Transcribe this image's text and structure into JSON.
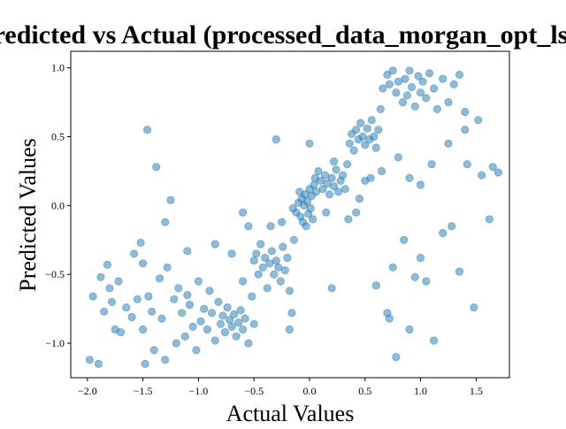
{
  "chart_data": {
    "type": "scatter",
    "title": "Predicted vs Actual (processed_data_morgan_opt_lsc)",
    "xlabel": "Actual Values",
    "ylabel": "Predicted Values",
    "xlim": [
      -2.15,
      1.8
    ],
    "ylim": [
      -1.25,
      1.12
    ],
    "xticks": [
      -2.0,
      -1.5,
      -1.0,
      -0.5,
      0.0,
      0.5,
      1.0,
      1.5
    ],
    "xtick_labels": [
      "−2.0",
      "−1.5",
      "−1.0",
      "−0.5",
      "0.0",
      "0.5",
      "1.0",
      "1.5"
    ],
    "yticks": [
      -1.0,
      -0.5,
      0.0,
      0.5,
      1.0
    ],
    "ytick_labels": [
      "−1.0",
      "−0.5",
      "0.0",
      "0.5",
      "1.0"
    ],
    "grid": false,
    "marker_color": "#1f77b4",
    "marker_alpha": 0.5,
    "series": [
      {
        "points": [
          [
            -1.98,
            -1.12
          ],
          [
            -1.95,
            -0.66
          ],
          [
            -1.9,
            -1.15
          ],
          [
            -1.88,
            -0.52
          ],
          [
            -1.85,
            -0.77
          ],
          [
            -1.82,
            -0.43
          ],
          [
            -1.8,
            -0.6
          ],
          [
            -1.78,
            -0.7
          ],
          [
            -1.72,
            -0.55
          ],
          [
            -1.7,
            -0.92
          ],
          [
            -1.65,
            -0.74
          ],
          [
            -1.6,
            -0.81
          ],
          [
            -1.58,
            -0.35
          ],
          [
            -1.55,
            -0.68
          ],
          [
            -1.52,
            -0.27
          ],
          [
            -1.5,
            -0.9
          ],
          [
            -1.48,
            -1.15
          ],
          [
            -1.46,
            0.55
          ],
          [
            -1.45,
            -0.66
          ],
          [
            -1.42,
            -0.77
          ],
          [
            -1.4,
            -1.05
          ],
          [
            -1.38,
            0.28
          ],
          [
            -1.35,
            -0.53
          ],
          [
            -1.33,
            -0.82
          ],
          [
            -1.3,
            -1.12
          ],
          [
            -1.28,
            -0.45
          ],
          [
            -1.25,
            0.04
          ],
          [
            -1.22,
            -0.68
          ],
          [
            -1.2,
            -1.0
          ],
          [
            -1.18,
            -0.6
          ],
          [
            -1.15,
            -0.78
          ],
          [
            -1.12,
            -0.95
          ],
          [
            -1.1,
            -0.33
          ],
          [
            -1.08,
            -0.72
          ],
          [
            -1.05,
            -0.88
          ],
          [
            -1.02,
            -1.05
          ],
          [
            -1.0,
            -0.55
          ],
          [
            -0.98,
            -0.84
          ],
          [
            -0.95,
            -0.75
          ],
          [
            -0.92,
            -0.9
          ],
          [
            -0.9,
            -0.62
          ],
          [
            -0.88,
            -0.78
          ],
          [
            -0.85,
            -0.98
          ],
          [
            -0.82,
            -0.7
          ],
          [
            -0.8,
            -0.86
          ],
          [
            -0.78,
            -0.8
          ],
          [
            -0.76,
            -0.92
          ],
          [
            -0.74,
            -0.74
          ],
          [
            -0.72,
            -0.83
          ],
          [
            -0.7,
            -0.88
          ],
          [
            -0.68,
            -0.79
          ],
          [
            -0.66,
            -0.95
          ],
          [
            -0.64,
            -0.85
          ],
          [
            -0.62,
            -0.76
          ],
          [
            -0.6,
            -0.9
          ],
          [
            -0.58,
            -0.82
          ],
          [
            -0.55,
            -1.0
          ],
          [
            -0.52,
            -0.66
          ],
          [
            -0.5,
            -0.86
          ],
          [
            -0.5,
            -0.4
          ],
          [
            -0.48,
            -0.35
          ],
          [
            -0.46,
            -0.5
          ],
          [
            -0.44,
            -0.28
          ],
          [
            -0.42,
            -0.45
          ],
          [
            -0.4,
            -0.38
          ],
          [
            -0.38,
            -0.6
          ],
          [
            -0.36,
            -0.42
          ],
          [
            -0.34,
            -0.33
          ],
          [
            -0.32,
            -0.5
          ],
          [
            -0.3,
            -0.4
          ],
          [
            -0.28,
            -0.45
          ],
          [
            -0.26,
            -0.55
          ],
          [
            -0.24,
            -0.3
          ],
          [
            -0.22,
            -0.47
          ],
          [
            -0.2,
            -0.38
          ],
          [
            -0.18,
            -0.62
          ],
          [
            -0.18,
            -0.9
          ],
          [
            -0.16,
            -0.78
          ],
          [
            -0.14,
            -0.25
          ],
          [
            -0.12,
            -0.05
          ],
          [
            -0.1,
            0.02
          ],
          [
            -0.09,
            0.1
          ],
          [
            -0.08,
            -0.08
          ],
          [
            -0.07,
            0.05
          ],
          [
            -0.06,
            -0.12
          ],
          [
            -0.05,
            0.0
          ],
          [
            -0.04,
            0.08
          ],
          [
            -0.03,
            -0.15
          ],
          [
            -0.02,
            0.03
          ],
          [
            -0.01,
            -0.06
          ],
          [
            0.0,
            0.12
          ],
          [
            0.01,
            -0.02
          ],
          [
            0.02,
            0.07
          ],
          [
            0.03,
            -0.1
          ],
          [
            0.04,
            0.15
          ],
          [
            0.05,
            0.2
          ],
          [
            0.06,
            0.1
          ],
          [
            0.08,
            0.25
          ],
          [
            0.1,
            0.18
          ],
          [
            0.12,
            0.12
          ],
          [
            0.14,
            0.22
          ],
          [
            0.16,
            0.16
          ],
          [
            0.18,
            0.08
          ],
          [
            0.2,
            0.2
          ],
          [
            0.22,
            0.14
          ],
          [
            0.24,
            0.26
          ],
          [
            0.26,
            0.1
          ],
          [
            0.28,
            0.18
          ],
          [
            0.3,
            0.22
          ],
          [
            0.32,
            0.12
          ],
          [
            0.34,
            0.3
          ],
          [
            0.36,
            0.45
          ],
          [
            0.38,
            0.52
          ],
          [
            0.4,
            0.4
          ],
          [
            0.42,
            0.55
          ],
          [
            0.44,
            0.48
          ],
          [
            0.46,
            0.6
          ],
          [
            0.48,
            0.5
          ],
          [
            0.5,
            0.44
          ],
          [
            0.52,
            0.56
          ],
          [
            0.54,
            0.48
          ],
          [
            0.56,
            0.62
          ],
          [
            0.58,
            0.5
          ],
          [
            0.6,
            0.42
          ],
          [
            0.62,
            0.55
          ],
          [
            0.64,
            0.7
          ],
          [
            0.66,
            0.85
          ],
          [
            0.7,
            0.95
          ],
          [
            0.72,
            0.88
          ],
          [
            0.75,
            0.98
          ],
          [
            0.78,
            0.82
          ],
          [
            0.8,
            0.9
          ],
          [
            0.84,
            0.75
          ],
          [
            0.86,
            0.92
          ],
          [
            0.88,
            0.8
          ],
          [
            0.9,
            0.98
          ],
          [
            0.92,
            0.86
          ],
          [
            0.95,
            0.72
          ],
          [
            0.98,
            0.94
          ],
          [
            1.0,
            0.82
          ],
          [
            1.02,
            0.9
          ],
          [
            1.05,
            0.78
          ],
          [
            1.08,
            0.96
          ],
          [
            1.12,
            0.85
          ],
          [
            1.15,
            0.7
          ],
          [
            1.2,
            0.92
          ],
          [
            1.25,
            0.75
          ],
          [
            1.3,
            0.88
          ],
          [
            1.35,
            0.95
          ],
          [
            1.4,
            0.68
          ],
          [
            -0.3,
            0.48
          ],
          [
            0.0,
            0.45
          ],
          [
            -0.15,
            -0.02
          ],
          [
            0.15,
            -0.05
          ],
          [
            -0.25,
            -0.12
          ],
          [
            0.22,
            0.32
          ],
          [
            0.35,
            -0.1
          ],
          [
            0.42,
            -0.05
          ],
          [
            0.55,
            0.2
          ],
          [
            0.6,
            -0.58
          ],
          [
            0.7,
            -0.78
          ],
          [
            0.72,
            -0.82
          ],
          [
            0.75,
            -0.45
          ],
          [
            0.78,
            -1.1
          ],
          [
            0.85,
            -0.25
          ],
          [
            0.9,
            -0.9
          ],
          [
            0.95,
            -0.52
          ],
          [
            1.0,
            -0.38
          ],
          [
            1.05,
            -0.55
          ],
          [
            1.12,
            -0.98
          ],
          [
            1.2,
            -0.2
          ],
          [
            1.28,
            -0.15
          ],
          [
            1.35,
            -0.48
          ],
          [
            1.48,
            -0.74
          ],
          [
            1.55,
            0.22
          ],
          [
            1.62,
            -0.1
          ],
          [
            1.7,
            0.24
          ],
          [
            1.65,
            0.28
          ],
          [
            1.52,
            0.62
          ],
          [
            1.42,
            0.3
          ],
          [
            0.2,
            -0.6
          ],
          [
            0.45,
            0.05
          ],
          [
            0.5,
            0.18
          ],
          [
            -0.6,
            -0.55
          ],
          [
            -0.7,
            -0.35
          ],
          [
            -0.85,
            -0.28
          ],
          [
            -1.1,
            -0.65
          ],
          [
            -1.3,
            -0.12
          ],
          [
            -1.5,
            -0.42
          ],
          [
            -1.75,
            -0.9
          ],
          [
            0.65,
            0.25
          ],
          [
            0.8,
            0.35
          ],
          [
            0.9,
            0.2
          ],
          [
            1.0,
            0.15
          ],
          [
            1.1,
            0.3
          ],
          [
            1.25,
            0.45
          ],
          [
            1.4,
            0.55
          ],
          [
            -0.55,
            -0.15
          ],
          [
            -0.6,
            -0.05
          ],
          [
            -0.35,
            -0.15
          ]
        ]
      }
    ]
  }
}
